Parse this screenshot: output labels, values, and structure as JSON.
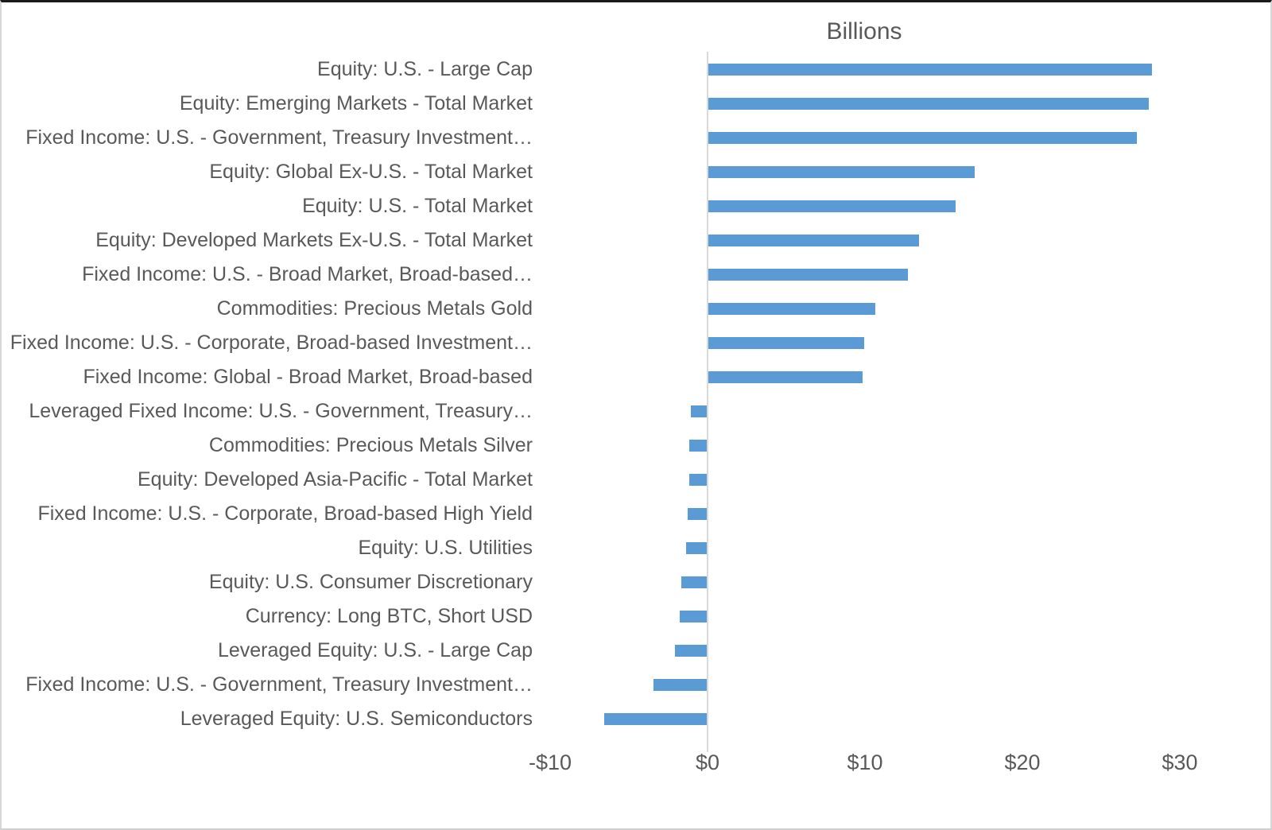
{
  "chart_data": {
    "type": "bar",
    "orientation": "horizontal",
    "title": "Billions",
    "unit": "billions of dollars",
    "grid": false,
    "xlim": [
      -10,
      35
    ],
    "bar_color": "#5B9BD5",
    "text_color": "#595959",
    "axis_line_color": "#D9D9D9",
    "categories": [
      "Equity: U.S. - Large Cap",
      "Equity: Emerging Markets - Total Market",
      "Fixed Income: U.S. - Government, Treasury Investment…",
      "Equity: Global Ex-U.S. - Total Market",
      "Equity: U.S. - Total Market",
      "Equity: Developed Markets Ex-U.S. - Total Market",
      "Fixed Income: U.S. - Broad Market, Broad-based…",
      "Commodities: Precious Metals Gold",
      "Fixed Income: U.S. - Corporate, Broad-based Investment…",
      "Fixed Income: Global - Broad Market, Broad-based",
      "Leveraged Fixed Income: U.S. - Government, Treasury…",
      "Commodities: Precious Metals Silver",
      "Equity: Developed Asia-Pacific - Total Market",
      "Fixed Income: U.S. - Corporate, Broad-based High Yield",
      "Equity: U.S. Utilities",
      "Equity: U.S. Consumer Discretionary",
      "Currency: Long BTC, Short USD",
      "Leveraged Equity: U.S. - Large Cap",
      "Fixed Income: U.S. - Government, Treasury Investment…",
      "Leveraged Equity: U.S. Semiconductors"
    ],
    "values": [
      28.2,
      28.0,
      27.2,
      16.9,
      15.7,
      13.4,
      12.7,
      10.6,
      9.9,
      9.8,
      -1.0,
      -1.1,
      -1.1,
      -1.2,
      -1.3,
      -1.6,
      -1.7,
      -2.0,
      -3.4,
      -6.5
    ],
    "x_ticks": [
      {
        "label": "-$10",
        "value": -10
      },
      {
        "label": "$0",
        "value": 0
      },
      {
        "label": "$10",
        "value": 10
      },
      {
        "label": "$20",
        "value": 20
      },
      {
        "label": "$30",
        "value": 30
      }
    ]
  }
}
